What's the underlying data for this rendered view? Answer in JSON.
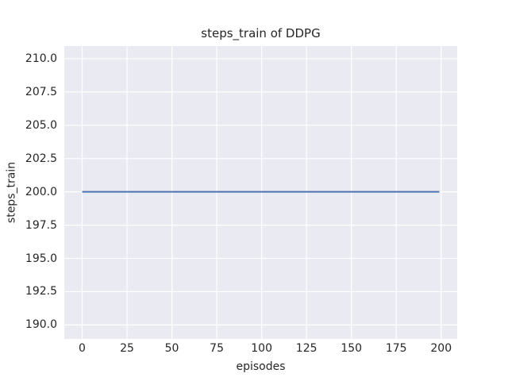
{
  "chart_data": {
    "type": "line",
    "title": "steps_train of DDPG",
    "xlabel": "episodes",
    "ylabel": "steps_train",
    "xlim": [
      -9.95,
      208.95
    ],
    "ylim": [
      188.95,
      210.95
    ],
    "xticks": [
      0,
      25,
      50,
      75,
      100,
      125,
      150,
      175,
      200
    ],
    "xtick_labels": [
      "0",
      "25",
      "50",
      "75",
      "100",
      "125",
      "150",
      "175",
      "200"
    ],
    "yticks": [
      190.0,
      192.5,
      195.0,
      197.5,
      200.0,
      202.5,
      205.0,
      207.5,
      210.0
    ],
    "ytick_labels": [
      "190.0",
      "192.5",
      "195.0",
      "197.5",
      "200.0",
      "202.5",
      "205.0",
      "207.5",
      "210.0"
    ],
    "grid": true,
    "legend": false,
    "series": [
      {
        "name": "steps_train",
        "note": "constant value 200 for every episode from 0 to 199",
        "x": [
          0,
          199
        ],
        "y": [
          200,
          200
        ],
        "color": "#4C72B0",
        "line_width": 2
      }
    ],
    "colors": {
      "figure_background": "#FFFFFF",
      "plot_background": "#EAEAF2",
      "gridline": "#FFFFFF",
      "line": "#4C72B0",
      "text": "#262626"
    }
  }
}
